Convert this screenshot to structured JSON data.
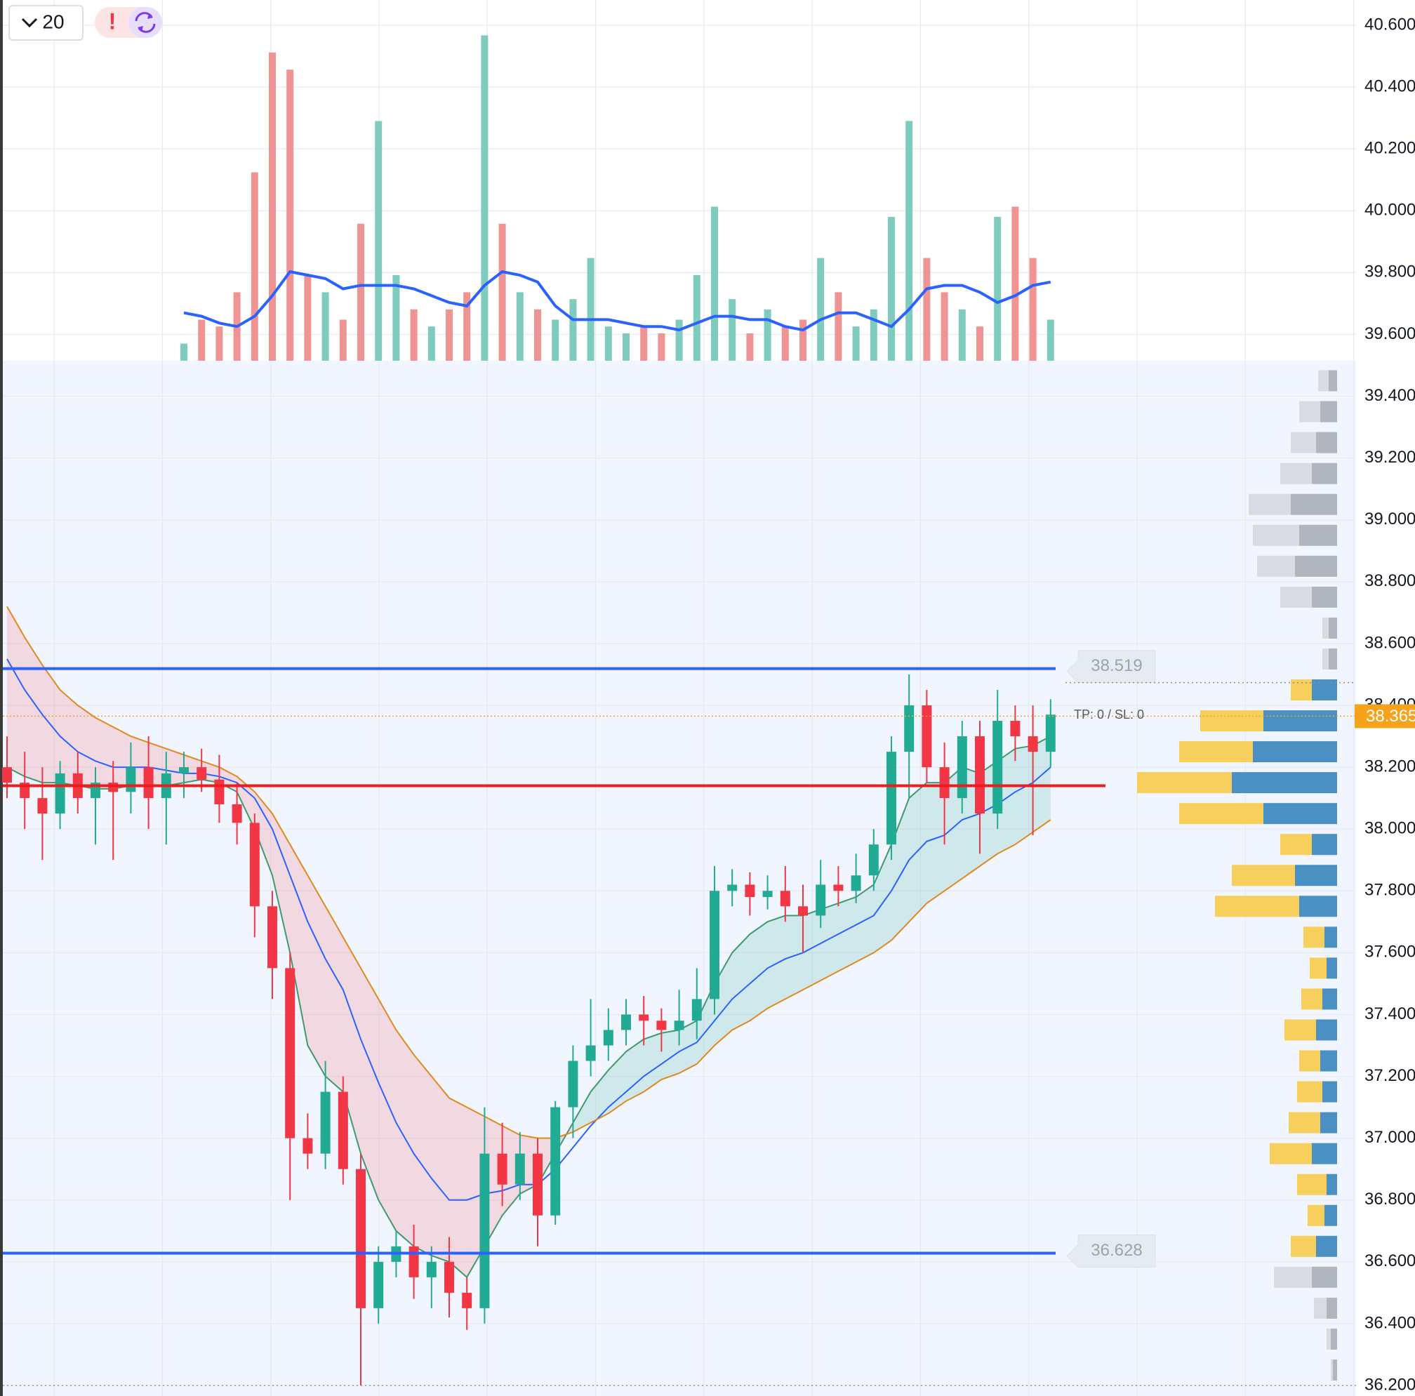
{
  "chart_data": {
    "type": "candlestick",
    "toolbar": {
      "interval": "20",
      "alert": "!"
    },
    "ylim": [
      36.2,
      40.6
    ],
    "yticks": [
      {
        "value": 40.6,
        "label": "40.600"
      },
      {
        "value": 40.4,
        "label": "40.400"
      },
      {
        "value": 40.2,
        "label": "40.200"
      },
      {
        "value": 40.0,
        "label": "40.000"
      },
      {
        "value": 39.8,
        "label": "39.800"
      },
      {
        "value": 39.6,
        "label": "39.600"
      },
      {
        "value": 39.4,
        "label": "39.400"
      },
      {
        "value": 39.2,
        "label": "39.200"
      },
      {
        "value": 39.0,
        "label": "39.000"
      },
      {
        "value": 38.8,
        "label": "38.800"
      },
      {
        "value": 38.6,
        "label": "38.600"
      },
      {
        "value": 38.4,
        "label": "38.400"
      },
      {
        "value": 38.2,
        "label": "38.200"
      },
      {
        "value": 38.0,
        "label": "38.000"
      },
      {
        "value": 37.8,
        "label": "37.800"
      },
      {
        "value": 37.6,
        "label": "37.600"
      },
      {
        "value": 37.4,
        "label": "37.400"
      },
      {
        "value": 37.2,
        "label": "37.200"
      },
      {
        "value": 37.0,
        "label": "37.000"
      },
      {
        "value": 36.8,
        "label": "36.800"
      },
      {
        "value": 36.6,
        "label": "36.600"
      },
      {
        "value": 36.4,
        "label": "36.400"
      },
      {
        "value": 36.2,
        "label": "36.200"
      }
    ],
    "grid": true,
    "up_color": "#22ab94",
    "down_color": "#f23645",
    "candles": [
      [
        38.2,
        38.3,
        38.1,
        38.15
      ],
      [
        38.15,
        38.25,
        38.0,
        38.1
      ],
      [
        38.1,
        38.2,
        37.9,
        38.05
      ],
      [
        38.05,
        38.22,
        38.0,
        38.18
      ],
      [
        38.18,
        38.25,
        38.05,
        38.1
      ],
      [
        38.1,
        38.2,
        37.95,
        38.15
      ],
      [
        38.15,
        38.22,
        37.9,
        38.12
      ],
      [
        38.12,
        38.28,
        38.05,
        38.2
      ],
      [
        38.2,
        38.3,
        38.0,
        38.1
      ],
      [
        38.1,
        38.25,
        37.95,
        38.18
      ],
      [
        38.18,
        38.25,
        38.1,
        38.2
      ],
      [
        38.2,
        38.26,
        38.12,
        38.16
      ],
      [
        38.16,
        38.24,
        38.02,
        38.08
      ],
      [
        38.08,
        38.15,
        37.95,
        38.02
      ],
      [
        38.02,
        38.05,
        37.65,
        37.75
      ],
      [
        37.75,
        37.8,
        37.45,
        37.55
      ],
      [
        37.55,
        37.6,
        36.8,
        37.0
      ],
      [
        37.0,
        37.08,
        36.9,
        36.95
      ],
      [
        36.95,
        37.25,
        36.9,
        37.15
      ],
      [
        37.15,
        37.2,
        36.85,
        36.9
      ],
      [
        36.9,
        36.95,
        36.2,
        36.45
      ],
      [
        36.45,
        36.65,
        36.4,
        36.6
      ],
      [
        36.6,
        36.7,
        36.55,
        36.65
      ],
      [
        36.65,
        36.72,
        36.48,
        36.55
      ],
      [
        36.55,
        36.65,
        36.45,
        36.6
      ],
      [
        36.6,
        36.68,
        36.42,
        36.5
      ],
      [
        36.5,
        36.55,
        36.38,
        36.45
      ],
      [
        36.45,
        37.1,
        36.4,
        36.95
      ],
      [
        36.95,
        37.05,
        36.78,
        36.85
      ],
      [
        36.85,
        37.02,
        36.8,
        36.95
      ],
      [
        36.95,
        37.0,
        36.65,
        36.75
      ],
      [
        36.75,
        37.12,
        36.72,
        37.1
      ],
      [
        37.1,
        37.3,
        37.0,
        37.25
      ],
      [
        37.25,
        37.45,
        37.2,
        37.3
      ],
      [
        37.3,
        37.42,
        37.25,
        37.35
      ],
      [
        37.35,
        37.45,
        37.3,
        37.4
      ],
      [
        37.4,
        37.46,
        37.3,
        37.38
      ],
      [
        37.38,
        37.42,
        37.28,
        37.35
      ],
      [
        37.35,
        37.48,
        37.3,
        37.38
      ],
      [
        37.38,
        37.55,
        37.32,
        37.45
      ],
      [
        37.45,
        37.88,
        37.4,
        37.8
      ],
      [
        37.8,
        37.87,
        37.75,
        37.82
      ],
      [
        37.82,
        37.86,
        37.72,
        37.78
      ],
      [
        37.78,
        37.85,
        37.74,
        37.8
      ],
      [
        37.8,
        37.88,
        37.7,
        37.75
      ],
      [
        37.75,
        37.82,
        37.6,
        37.72
      ],
      [
        37.72,
        37.9,
        37.68,
        37.82
      ],
      [
        37.82,
        37.88,
        37.75,
        37.8
      ],
      [
        37.8,
        37.92,
        37.76,
        37.85
      ],
      [
        37.85,
        38.0,
        37.8,
        37.95
      ],
      [
        37.95,
        38.3,
        37.9,
        38.25
      ],
      [
        38.25,
        38.5,
        38.1,
        38.4
      ],
      [
        38.4,
        38.45,
        38.15,
        38.2
      ],
      [
        38.2,
        38.28,
        37.95,
        38.1
      ],
      [
        38.1,
        38.35,
        38.05,
        38.3
      ],
      [
        38.3,
        38.35,
        37.92,
        38.05
      ],
      [
        38.05,
        38.45,
        38.0,
        38.35
      ],
      [
        38.35,
        38.4,
        38.22,
        38.3
      ],
      [
        38.3,
        38.4,
        37.98,
        38.25
      ],
      [
        38.25,
        38.42,
        38.2,
        38.37
      ]
    ],
    "series": [
      {
        "color": "#3f9a6e",
        "values": [
          38.2,
          38.17,
          38.15,
          38.15,
          38.14,
          38.13,
          38.13,
          38.14,
          38.14,
          38.14,
          38.15,
          38.16,
          38.15,
          38.12,
          38.0,
          37.85,
          37.6,
          37.3,
          37.2,
          37.15,
          36.95,
          36.8,
          36.7,
          36.65,
          36.62,
          36.6,
          36.55,
          36.65,
          36.75,
          36.82,
          36.85,
          36.95,
          37.05,
          37.15,
          37.22,
          37.28,
          37.32,
          37.34,
          37.35,
          37.38,
          37.5,
          37.6,
          37.66,
          37.7,
          37.72,
          37.72,
          37.74,
          37.76,
          37.78,
          37.82,
          37.95,
          38.1,
          38.15,
          38.15,
          38.2,
          38.18,
          38.22,
          38.26,
          38.27,
          38.3
        ]
      },
      {
        "color": "#2962ff",
        "values": [
          38.55,
          38.45,
          38.37,
          38.3,
          38.25,
          38.22,
          38.2,
          38.2,
          38.2,
          38.19,
          38.18,
          38.18,
          38.17,
          38.15,
          38.1,
          38.0,
          37.85,
          37.7,
          37.58,
          37.48,
          37.32,
          37.18,
          37.05,
          36.95,
          36.87,
          36.8,
          36.8,
          36.82,
          36.83,
          36.85,
          36.85,
          36.9,
          36.97,
          37.04,
          37.1,
          37.15,
          37.2,
          37.24,
          37.28,
          37.31,
          37.38,
          37.45,
          37.5,
          37.55,
          37.58,
          37.6,
          37.63,
          37.66,
          37.69,
          37.72,
          37.8,
          37.9,
          37.96,
          37.98,
          38.03,
          38.05,
          38.08,
          38.12,
          38.15,
          38.2
        ]
      },
      {
        "color": "#e08a1e",
        "values": [
          38.72,
          38.62,
          38.53,
          38.45,
          38.4,
          38.36,
          38.33,
          38.3,
          38.28,
          38.26,
          38.24,
          38.22,
          38.2,
          38.17,
          38.12,
          38.05,
          37.95,
          37.85,
          37.75,
          37.65,
          37.55,
          37.45,
          37.35,
          37.27,
          37.2,
          37.13,
          37.1,
          37.07,
          37.04,
          37.01,
          37.0,
          37.0,
          37.02,
          37.05,
          37.08,
          37.12,
          37.15,
          37.19,
          37.21,
          37.24,
          37.3,
          37.35,
          37.38,
          37.42,
          37.45,
          37.48,
          37.51,
          37.54,
          37.57,
          37.6,
          37.64,
          37.7,
          37.76,
          37.8,
          37.84,
          37.88,
          37.92,
          37.95,
          37.99,
          38.03
        ]
      }
    ],
    "band_colors": {
      "bear": "rgba(242,54,69,0.15)",
      "bull": "rgba(34,171,148,0.16)"
    },
    "volume": {
      "ylim": [
        0,
        100
      ],
      "up_color": "#7fcbbd",
      "down_color": "#f09393",
      "values": [
        null,
        null,
        null,
        null,
        null,
        null,
        null,
        null,
        null,
        null,
        5,
        12,
        10,
        20,
        55,
        90,
        85,
        25,
        20,
        12,
        40,
        70,
        25,
        15,
        10,
        15,
        20,
        95,
        40,
        20,
        15,
        12,
        18,
        30,
        10,
        8,
        10,
        8,
        12,
        25,
        45,
        18,
        8,
        15,
        10,
        12,
        30,
        20,
        10,
        15,
        42,
        70,
        30,
        20,
        15,
        10,
        42,
        45,
        30,
        12
      ],
      "ma": {
        "color": "#2962ff",
        "values": [
          null,
          null,
          null,
          null,
          null,
          null,
          null,
          null,
          null,
          null,
          14,
          13,
          11,
          10,
          13,
          19,
          26,
          25,
          24,
          21,
          22,
          22,
          22,
          21,
          19,
          17,
          16,
          22,
          26,
          25,
          23,
          16,
          12,
          12,
          12,
          11,
          10,
          10,
          9,
          11,
          13,
          13,
          12,
          12,
          10,
          9,
          12,
          14,
          14,
          12,
          10,
          15,
          21,
          22,
          22,
          20,
          17,
          19,
          22,
          23
        ]
      }
    },
    "profile": {
      "xlim": [
        0,
        100
      ],
      "value_area": [
        36.6,
        38.5
      ],
      "colors": {
        "up": "#4a90c2",
        "down": "#f7cf5c",
        "up_out": "#b1b5bd",
        "down_out": "#d8dbe1"
      },
      "prices": [
        36.25,
        36.35,
        36.45,
        36.55,
        36.65,
        36.75,
        36.85,
        36.95,
        37.05,
        37.15,
        37.25,
        37.35,
        37.45,
        37.55,
        37.65,
        37.75,
        37.85,
        37.95,
        38.05,
        38.15,
        38.25,
        38.35,
        38.45,
        38.55,
        38.65,
        38.75,
        38.85,
        38.95,
        39.05,
        39.15,
        39.25,
        39.35,
        39.45
      ],
      "up": [
        2,
        3,
        5,
        12,
        10,
        6,
        5,
        12,
        8,
        7,
        8,
        10,
        7,
        5,
        6,
        18,
        20,
        12,
        35,
        50,
        40,
        35,
        12,
        4,
        4,
        12,
        20,
        18,
        22,
        12,
        10,
        8,
        4
      ],
      "down": [
        1,
        2,
        6,
        18,
        12,
        8,
        14,
        20,
        15,
        12,
        10,
        15,
        10,
        8,
        10,
        40,
        30,
        15,
        40,
        45,
        35,
        30,
        10,
        3,
        3,
        15,
        18,
        22,
        20,
        15,
        12,
        10,
        5
      ]
    },
    "levels": [
      {
        "value": 38.519,
        "color": "#2962ff",
        "label": "38.519"
      },
      {
        "value": 36.628,
        "color": "#2962ff",
        "label": "36.628"
      },
      {
        "value": 38.14,
        "color": "#f21b1b"
      }
    ],
    "last_price": {
      "value": 38.365,
      "label": "38.365",
      "color": "#f7a21b"
    },
    "annotation": "TP: 0 / SL: 0"
  }
}
